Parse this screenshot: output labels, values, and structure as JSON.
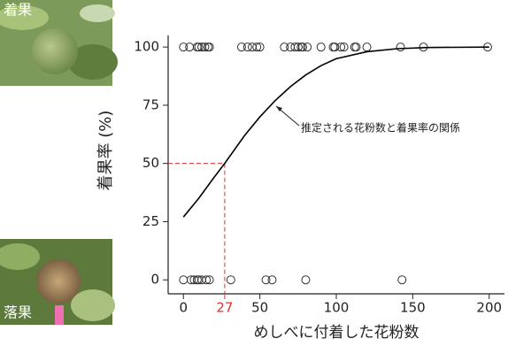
{
  "photos": {
    "top_label": "着果",
    "bottom_label": "落果"
  },
  "chart_data": {
    "type": "scatter",
    "ylabel": "着果率 (%)",
    "xlabel": "めしべに付着した花粉数",
    "annotation": "推定される花粉数と着果率の関係",
    "xlim": [
      -10,
      210
    ],
    "ylim": [
      -6,
      105
    ],
    "xticks": [
      0,
      50,
      100,
      150,
      200
    ],
    "yticks": [
      0,
      25,
      50,
      75,
      100
    ],
    "grid": false,
    "reference": {
      "x": 27,
      "y": 50,
      "color": "#e03030"
    },
    "series": [
      {
        "mode": "markers",
        "color": "#333333",
        "x": [
          0,
          4,
          9,
          10,
          12,
          14,
          16,
          17,
          38,
          42,
          45,
          48,
          50,
          66,
          70,
          73,
          75,
          77,
          78,
          81,
          90,
          98,
          99,
          103,
          105,
          112,
          113,
          120,
          142,
          157,
          199,
          0,
          5,
          7,
          9,
          10,
          12,
          15,
          17,
          31,
          54,
          58,
          80,
          143
        ],
        "values": [
          100,
          100,
          100,
          100,
          100,
          100,
          100,
          100,
          100,
          100,
          100,
          100,
          100,
          100,
          100,
          100,
          100,
          100,
          100,
          100,
          100,
          100,
          100,
          100,
          100,
          100,
          100,
          100,
          100,
          100,
          100,
          0,
          0,
          0,
          0,
          0,
          0,
          0,
          0,
          0,
          0,
          0,
          0,
          0
        ]
      },
      {
        "mode": "line",
        "color": "#000000",
        "x": [
          0,
          10,
          20,
          27,
          40,
          50,
          60,
          70,
          80,
          90,
          100,
          120,
          140,
          160,
          200
        ],
        "values": [
          27,
          35,
          44,
          50,
          62,
          70,
          77,
          83,
          88,
          92,
          95,
          98,
          99.3,
          99.8,
          100
        ]
      }
    ]
  }
}
